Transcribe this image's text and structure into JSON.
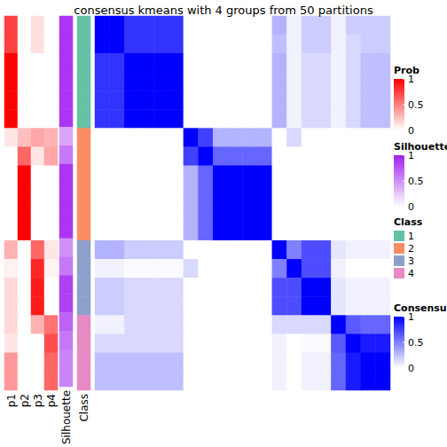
{
  "chart_data": {
    "type": "heatmap",
    "title": "consensus kmeans with 4 groups from 50 partitions",
    "tick_labels": "x",
    "annotation_columns": [
      "p1",
      "p2",
      "p3",
      "p4"
    ],
    "silhouette_label": "Silhouette",
    "class_label": "Class",
    "prob": [
      [
        0.75,
        0,
        0.12,
        0
      ],
      [
        0.75,
        0,
        0.12,
        0
      ],
      [
        1,
        0,
        0,
        0
      ],
      [
        1,
        0,
        0,
        0
      ],
      [
        1,
        0,
        0,
        0
      ],
      [
        1,
        0,
        0,
        0
      ],
      [
        0.1,
        0.25,
        0.35,
        0.3
      ],
      [
        0,
        0.6,
        0.1,
        0.35
      ],
      [
        0,
        1,
        0,
        0
      ],
      [
        0,
        1,
        0,
        0
      ],
      [
        0,
        1,
        0,
        0
      ],
      [
        0,
        1,
        0,
        0
      ],
      [
        0.3,
        0,
        0.6,
        0.1
      ],
      [
        0.05,
        0,
        0.85,
        0.05
      ],
      [
        0.15,
        0,
        0.9,
        0
      ],
      [
        0.15,
        0,
        0.9,
        0
      ],
      [
        0.15,
        0,
        0.3,
        0.55
      ],
      [
        0.1,
        0,
        0,
        0.7
      ],
      [
        0.4,
        0,
        0,
        0.6
      ],
      [
        0.4,
        0,
        0,
        0.6
      ]
    ],
    "silhouette": [
      0.9,
      0.9,
      0.9,
      0.9,
      0.9,
      0.9,
      0.4,
      0.6,
      0.9,
      0.9,
      0.9,
      0.9,
      0.5,
      0.6,
      0.85,
      0.85,
      0.7,
      0.6,
      0.55,
      0.55
    ],
    "class": [
      1,
      1,
      1,
      1,
      1,
      1,
      2,
      2,
      2,
      2,
      2,
      2,
      3,
      3,
      3,
      3,
      4,
      4,
      4,
      4
    ],
    "consensus": [
      [
        1,
        1,
        0.8,
        0.8,
        0.8,
        0.8,
        0,
        0,
        0,
        0,
        0,
        0,
        0.3,
        0.05,
        0.2,
        0.2,
        0.05,
        0.2,
        0.2,
        0.2
      ],
      [
        1,
        1,
        0.8,
        0.8,
        0.8,
        0.8,
        0,
        0,
        0,
        0,
        0,
        0,
        0.25,
        0.05,
        0.2,
        0.2,
        0.05,
        0.15,
        0.2,
        0.2
      ],
      [
        0.8,
        0.8,
        1,
        1,
        1,
        1,
        0,
        0,
        0,
        0,
        0,
        0,
        0.3,
        0.05,
        0.15,
        0.15,
        0.05,
        0.15,
        0.25,
        0.25
      ],
      [
        0.8,
        0.8,
        1,
        1,
        1,
        1,
        0,
        0,
        0,
        0,
        0,
        0,
        0.3,
        0.05,
        0.15,
        0.15,
        0.05,
        0.15,
        0.25,
        0.25
      ],
      [
        0.8,
        0.8,
        1,
        1,
        1,
        1,
        0,
        0,
        0,
        0,
        0,
        0,
        0.3,
        0.05,
        0.15,
        0.15,
        0.05,
        0.15,
        0.25,
        0.25
      ],
      [
        0.8,
        0.8,
        1,
        1,
        1,
        1,
        0,
        0,
        0,
        0,
        0,
        0,
        0.3,
        0.05,
        0.15,
        0.15,
        0.05,
        0.15,
        0.25,
        0.25
      ],
      [
        0,
        0,
        0,
        0,
        0,
        0,
        1,
        0.75,
        0.3,
        0.3,
        0.3,
        0.3,
        0,
        0.15,
        0,
        0,
        0,
        0,
        0,
        0
      ],
      [
        0,
        0,
        0,
        0,
        0,
        0,
        0.75,
        1,
        0.6,
        0.6,
        0.6,
        0.6,
        0,
        0,
        0,
        0,
        0,
        0,
        0,
        0
      ],
      [
        0,
        0,
        0,
        0,
        0,
        0,
        0.3,
        0.6,
        1,
        1,
        1,
        1,
        0,
        0,
        0,
        0,
        0,
        0,
        0,
        0
      ],
      [
        0,
        0,
        0,
        0,
        0,
        0,
        0.3,
        0.6,
        1,
        1,
        1,
        1,
        0,
        0,
        0,
        0,
        0,
        0,
        0,
        0
      ],
      [
        0,
        0,
        0,
        0,
        0,
        0,
        0.3,
        0.6,
        1,
        1,
        1,
        1,
        0,
        0,
        0,
        0,
        0,
        0,
        0,
        0
      ],
      [
        0,
        0,
        0,
        0,
        0,
        0,
        0.3,
        0.6,
        1,
        1,
        1,
        1,
        0,
        0,
        0,
        0,
        0,
        0,
        0,
        0
      ],
      [
        0.3,
        0.3,
        0.2,
        0.2,
        0.2,
        0.2,
        0,
        0,
        0,
        0,
        0,
        0,
        1,
        0.5,
        0.7,
        0.7,
        0.1,
        0.05,
        0.05,
        0.05
      ],
      [
        0.05,
        0.05,
        0.02,
        0.02,
        0.02,
        0.02,
        0.15,
        0,
        0,
        0,
        0,
        0,
        0.5,
        1,
        0.7,
        0.7,
        0.05,
        0,
        0,
        0
      ],
      [
        0.2,
        0.2,
        0.15,
        0.15,
        0.15,
        0.15,
        0,
        0,
        0,
        0,
        0,
        0,
        0.7,
        0.7,
        1,
        1,
        0.1,
        0.05,
        0.05,
        0.05
      ],
      [
        0.2,
        0.2,
        0.15,
        0.15,
        0.15,
        0.15,
        0,
        0,
        0,
        0,
        0,
        0,
        0.7,
        0.7,
        1,
        1,
        0.1,
        0.05,
        0.05,
        0.05
      ],
      [
        0.05,
        0.05,
        0.15,
        0.15,
        0.15,
        0.15,
        0,
        0,
        0,
        0,
        0,
        0,
        0.15,
        0.15,
        0.15,
        0.15,
        1,
        0.65,
        0.6,
        0.6
      ],
      [
        0.15,
        0.15,
        0.15,
        0.15,
        0.15,
        0.15,
        0,
        0,
        0,
        0,
        0,
        0,
        0.05,
        0,
        0.02,
        0.02,
        0.65,
        1,
        0.9,
        0.9
      ],
      [
        0.25,
        0.25,
        0.25,
        0.25,
        0.25,
        0.25,
        0,
        0,
        0,
        0,
        0,
        0,
        0.05,
        0,
        0.05,
        0.05,
        0.6,
        0.9,
        1,
        1
      ],
      [
        0.25,
        0.25,
        0.25,
        0.25,
        0.25,
        0.25,
        0,
        0,
        0,
        0,
        0,
        0,
        0.05,
        0,
        0.05,
        0.05,
        0.6,
        0.9,
        1,
        1
      ]
    ],
    "prob_colorbar": {
      "title": "Prob",
      "range": [
        0,
        1
      ],
      "ticks": [
        0,
        0.5,
        1
      ],
      "color": "#FF0000"
    },
    "silhouette_colorbar": {
      "title": "Silhouette",
      "range": [
        0,
        1
      ],
      "ticks": [
        0,
        0.5,
        1
      ],
      "color": "#A020F0"
    },
    "class_legend": {
      "title": "Class",
      "categories": [
        1,
        2,
        3,
        4
      ],
      "colors": [
        "#66C2A5",
        "#FC8D62",
        "#8DA0CB",
        "#E78AC3"
      ]
    },
    "consensus_colorbar": {
      "title": "Consensus",
      "range": [
        0,
        1
      ],
      "ticks": [
        0,
        0.5,
        1
      ],
      "color": "#0000FF"
    }
  }
}
